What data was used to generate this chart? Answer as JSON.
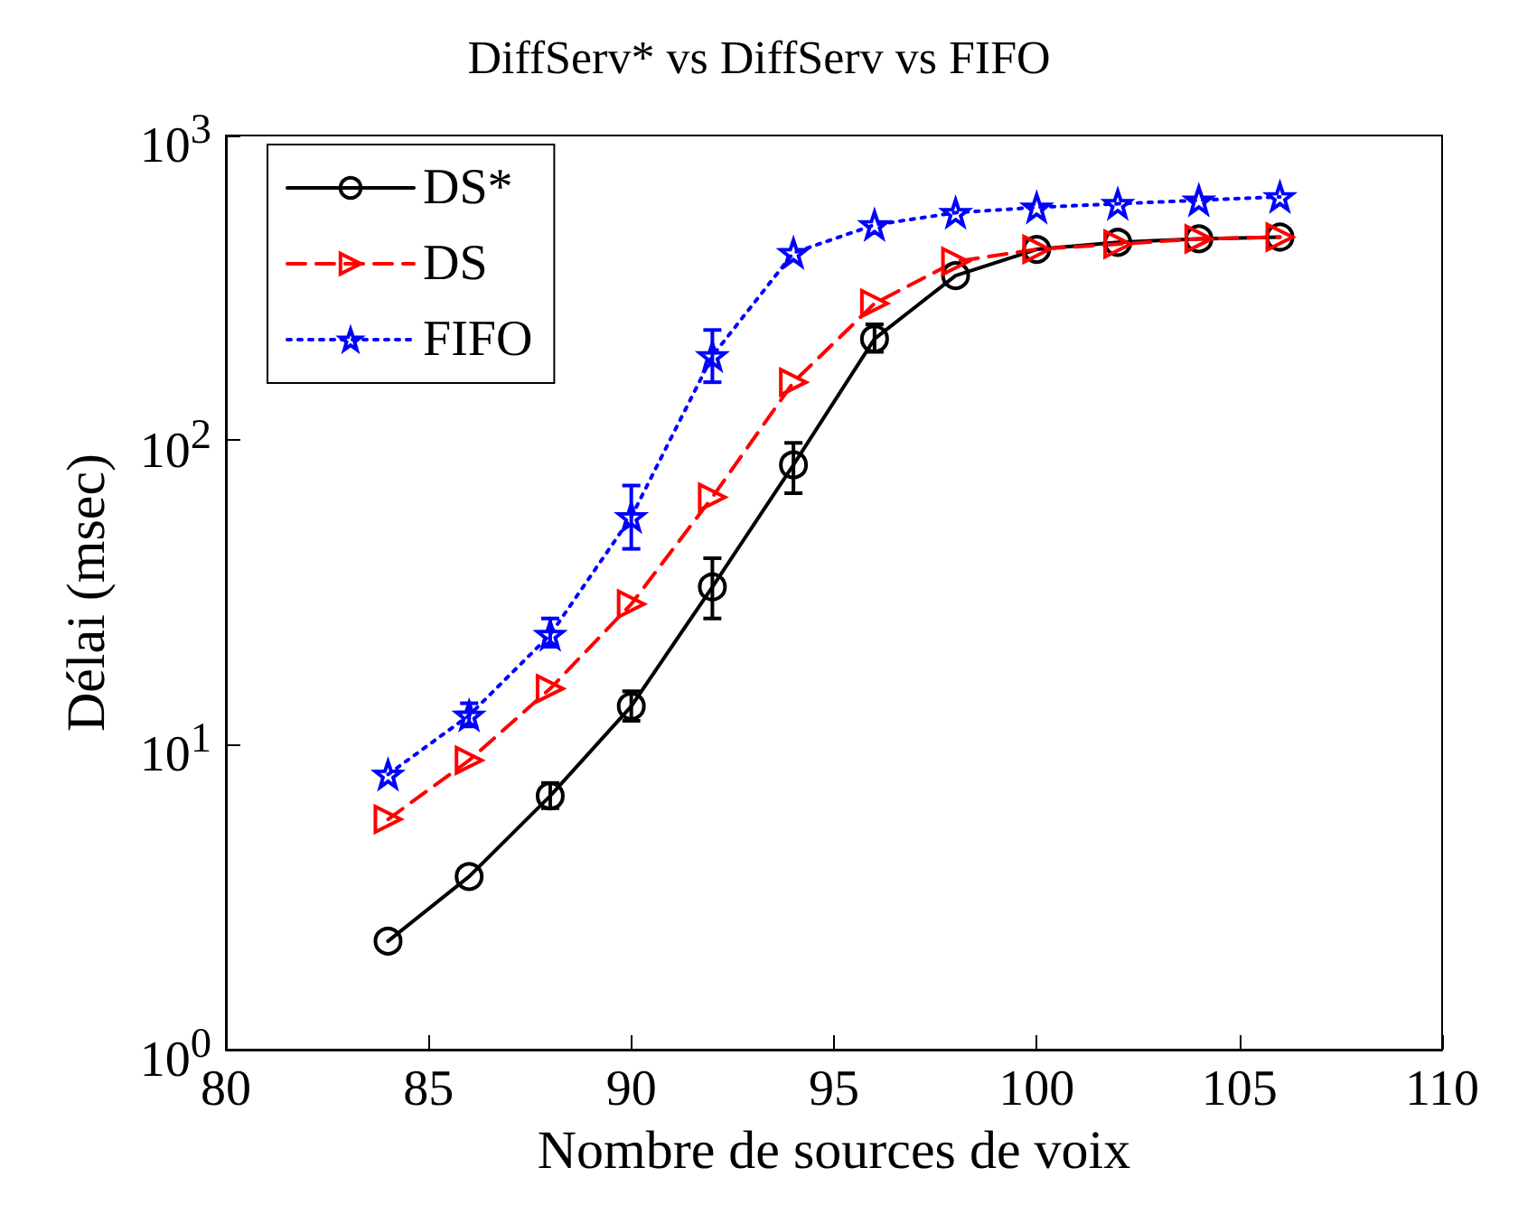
{
  "chart_data": {
    "type": "line",
    "title": "DiffServ* vs DiffServ vs FIFO",
    "xlabel": "Nombre de sources de voix",
    "ylabel": "Délai (msec)",
    "x": [
      84,
      86,
      88,
      90,
      92,
      94,
      96,
      98,
      100,
      102,
      104,
      106
    ],
    "series": [
      {
        "name": "DS*",
        "color": "#000000",
        "marker": "circle",
        "line_style": "solid",
        "values": [
          2.27,
          3.7,
          6.8,
          13.4,
          33,
          83,
          215,
          347,
          423,
          446,
          458,
          464
        ],
        "errors": [
          null,
          null,
          [
            6.2,
            7.5
          ],
          [
            12,
            15
          ],
          [
            26,
            41
          ],
          [
            67,
            98
          ],
          [
            195,
            240
          ],
          null,
          null,
          null,
          null,
          null
        ]
      },
      {
        "name": "DS",
        "color": "#ff0000",
        "marker": "triangle",
        "line_style": "dashed",
        "values": [
          5.7,
          8.9,
          15.3,
          29,
          65,
          155,
          281,
          386,
          423,
          440,
          458,
          464
        ]
      },
      {
        "name": "FIFO",
        "color": "#0000ff",
        "marker": "star",
        "line_style": "dotted",
        "values": [
          8,
          12.5,
          23,
          56,
          189,
          412,
          509,
          558,
          581,
          597,
          613,
          629
        ],
        "errors": [
          null,
          [
            11.5,
            13.7
          ],
          [
            21,
            26
          ],
          [
            44,
            71
          ],
          [
            155,
            230
          ],
          null,
          null,
          null,
          null,
          null,
          null,
          null
        ]
      }
    ],
    "xlim": [
      80,
      110
    ],
    "xticks": [
      80,
      85,
      90,
      95,
      100,
      105,
      110
    ],
    "ylim": [
      1,
      1000
    ],
    "yticks": [
      {
        "value": 1,
        "label": "10$^{0}$"
      },
      {
        "value": 10,
        "label": "10$^{1}$"
      },
      {
        "value": 100,
        "label": "10$^{2}$"
      },
      {
        "value": 1000,
        "label": "10$^{3}$"
      }
    ],
    "log": "y",
    "grid": false,
    "legend": "top left"
  }
}
